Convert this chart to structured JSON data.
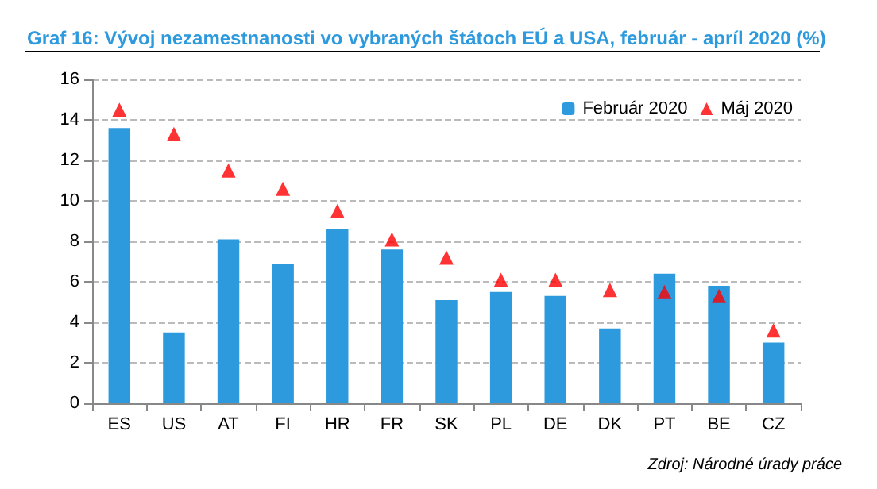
{
  "chart_data": {
    "type": "bar",
    "title": "Graf 16: Vývoj nezamestnanosti vo vybraných štátoch EÚ a USA, február - apríl 2020 (%)",
    "categories": [
      "ES",
      "US",
      "AT",
      "FI",
      "HR",
      "FR",
      "SK",
      "PL",
      "DE",
      "DK",
      "PT",
      "BE",
      "CZ"
    ],
    "series": [
      {
        "name": "Február 2020",
        "color": "#2e9ade",
        "values": [
          13.6,
          3.5,
          8.1,
          6.9,
          8.6,
          7.6,
          5.1,
          5.5,
          5.3,
          3.7,
          6.4,
          5.8,
          3.0
        ]
      },
      {
        "name": "Máj 2020",
        "type": "scatter",
        "marker": "triangle",
        "color": "#ff0000",
        "values": [
          14.5,
          13.3,
          11.5,
          10.6,
          9.5,
          8.1,
          7.2,
          6.1,
          6.1,
          5.6,
          5.5,
          5.3,
          3.6
        ]
      }
    ],
    "ylim": [
      0,
      16
    ],
    "yticks": [
      0,
      2,
      4,
      6,
      8,
      10,
      12,
      14,
      16
    ],
    "grid": "y",
    "legend": "top right",
    "annotations": [
      "Zdroj: Národné úrady práce"
    ]
  }
}
